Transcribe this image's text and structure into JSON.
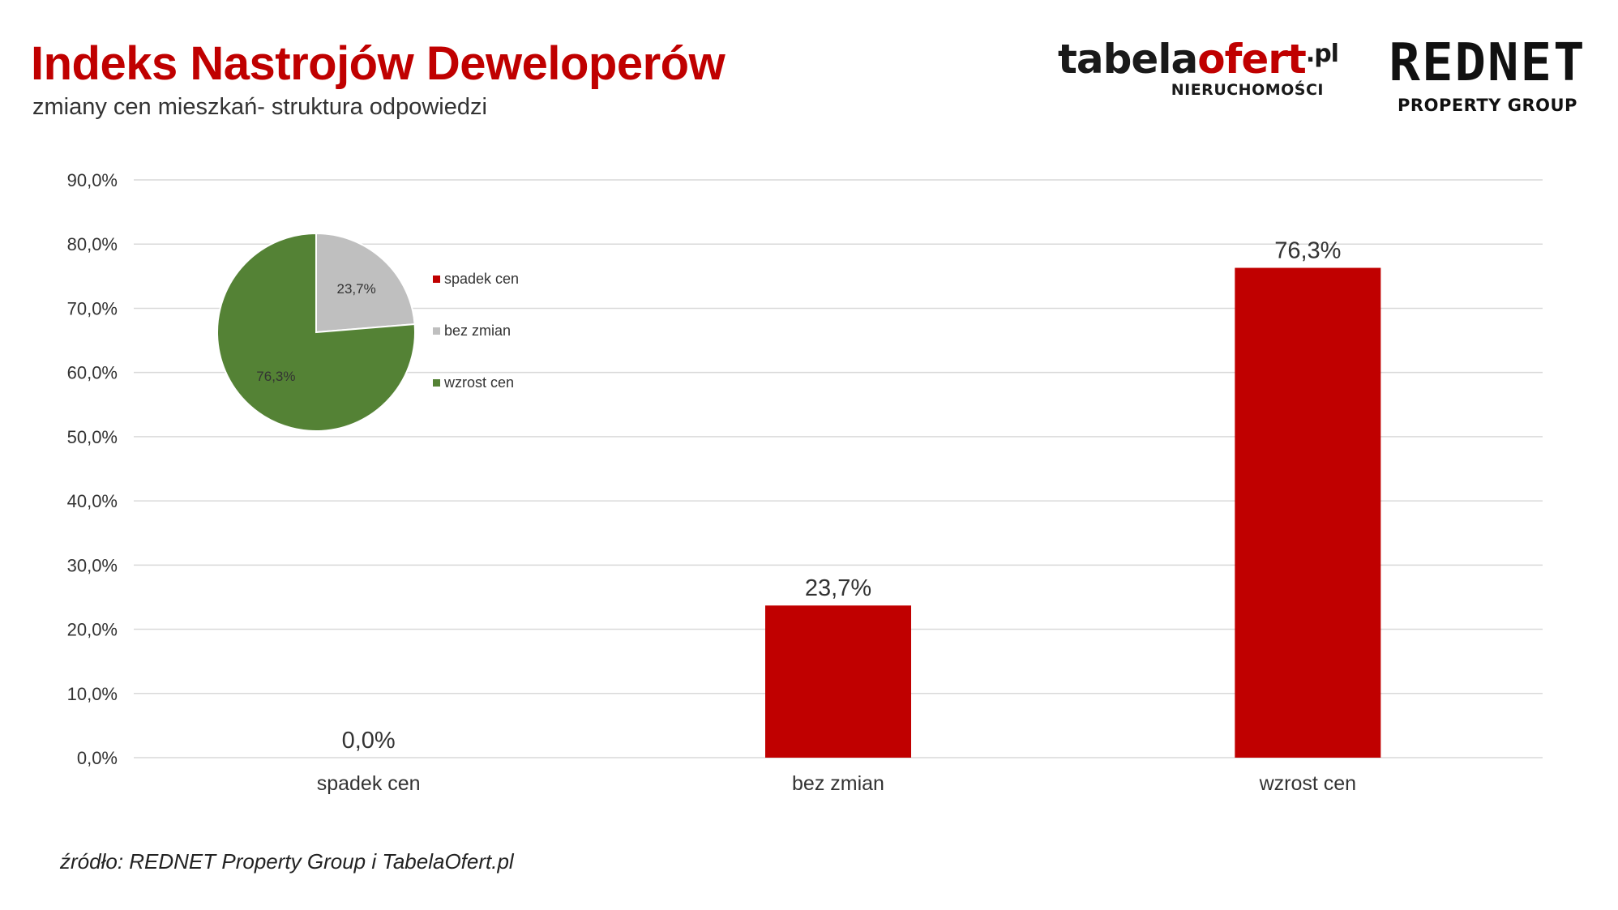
{
  "header": {
    "title": "Indeks Nastrojów Deweloperów",
    "subtitle": "zmiany cen mieszkań- struktura odpowiedzi"
  },
  "logos": {
    "tabela": {
      "part1": "tabela",
      "part2": "ofert",
      "part3": ".pl",
      "tagline": "NIERUCHOMOŚCI"
    },
    "rednet": {
      "name": "REDNET",
      "tagline": "PROPERTY GROUP"
    }
  },
  "footer": {
    "source": "źródło: REDNET Property Group i TabelaOfert.pl"
  },
  "colors": {
    "bar": "#c00000",
    "grid": "#d9d9d9",
    "pie_bez_zmian": "#bfbfbf",
    "pie_wzrost": "#548235",
    "title": "#c00000"
  },
  "chart_data": [
    {
      "type": "bar",
      "categories": [
        "spadek cen",
        "bez zmian",
        "wzrost cen"
      ],
      "values": [
        0.0,
        23.7,
        76.3
      ],
      "data_labels": [
        "0,0%",
        "23,7%",
        "76,3%"
      ],
      "ylim": [
        0,
        90
      ],
      "yticks": [
        0,
        10,
        20,
        30,
        40,
        50,
        60,
        70,
        80,
        90
      ],
      "ytick_labels": [
        "0,0%",
        "10,0%",
        "20,0%",
        "30,0%",
        "40,0%",
        "50,0%",
        "60,0%",
        "70,0%",
        "80,0%",
        "90,0%"
      ],
      "grid": true,
      "legend": "none"
    },
    {
      "type": "pie",
      "labels": [
        "spadek cen",
        "bez zmian",
        "wzrost cen"
      ],
      "values": [
        0.0,
        23.7,
        76.3
      ],
      "data_labels": [
        "",
        "23,7%",
        "76,3%"
      ],
      "colors": [
        "#c00000",
        "#bfbfbf",
        "#548235"
      ],
      "legend": "right"
    }
  ]
}
